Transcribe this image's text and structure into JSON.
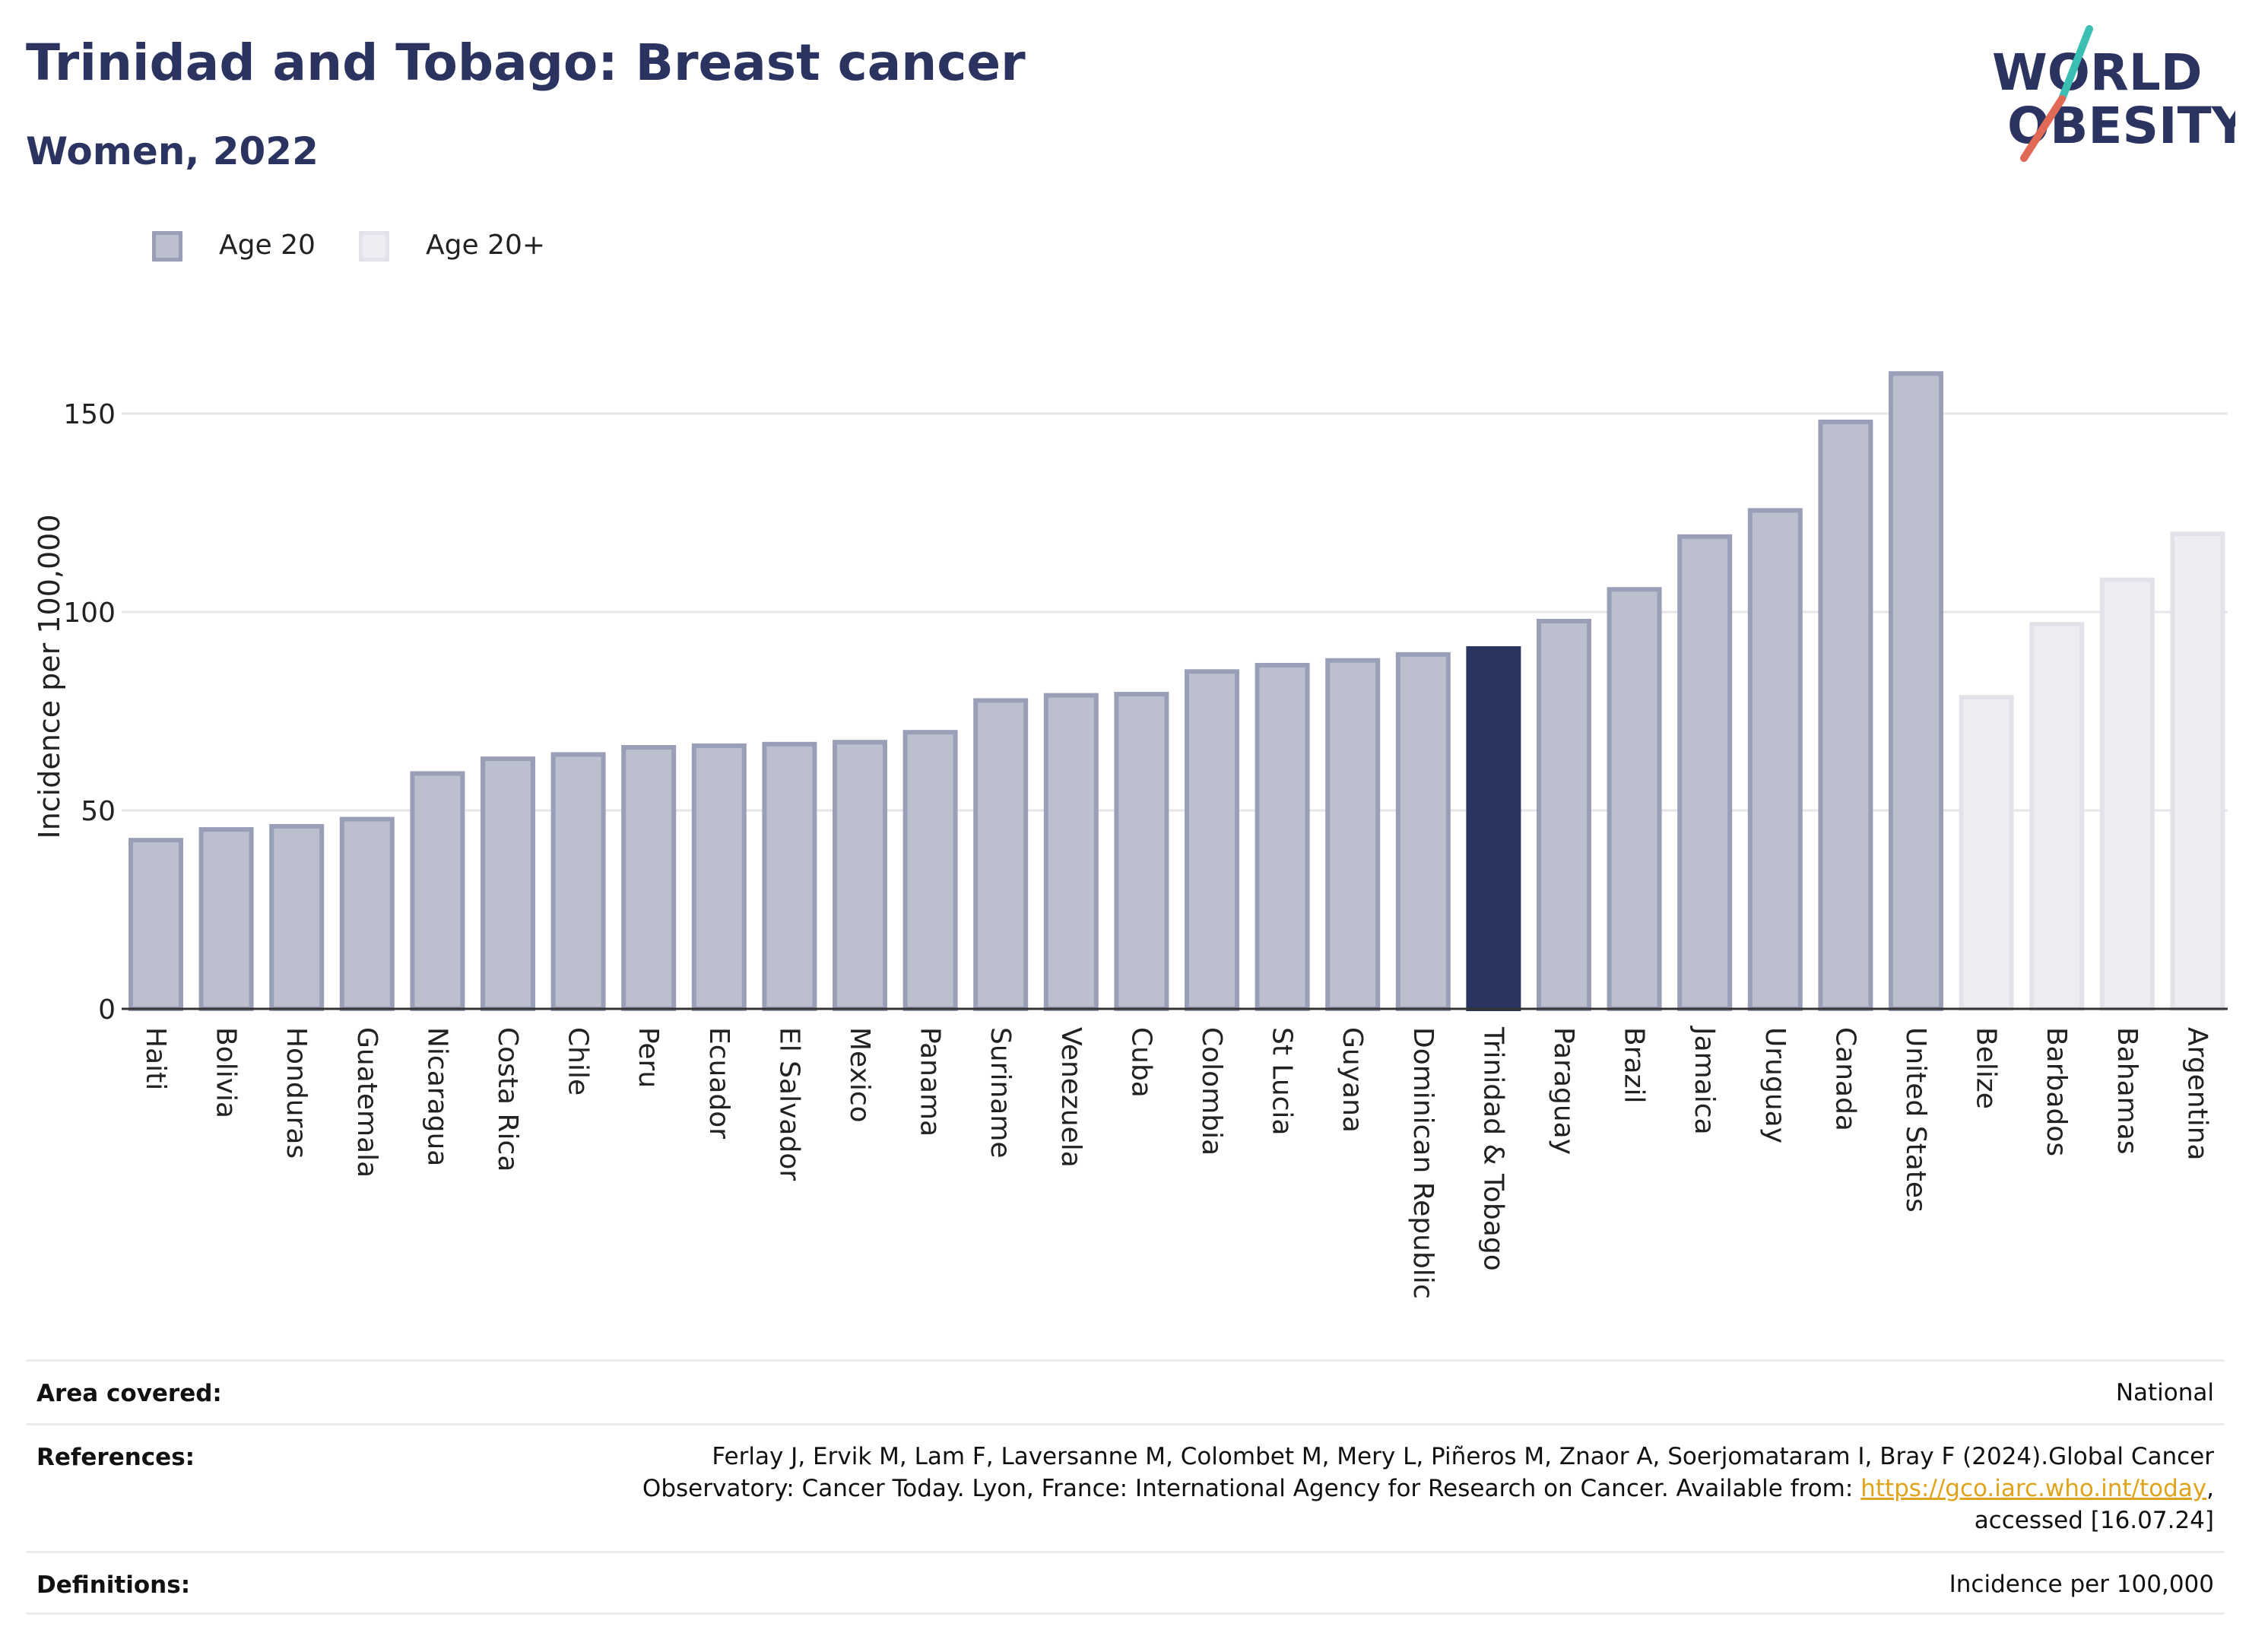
{
  "header": {
    "title": "Trinidad and Tobago: Breast cancer",
    "subtitle": "Women, 2022"
  },
  "logo": {
    "line1": "WORLD",
    "line2": "OBESITY"
  },
  "colors": {
    "title": "#2b3460",
    "age20_fill": "#bcbfcd",
    "age20_stroke": "#9a9fb8",
    "age20plus_fill": "#eeeef2",
    "age20plus_stroke": "#e2e3ea",
    "highlight": "#2b3460",
    "link": "#e0a41c"
  },
  "chart_data": {
    "type": "bar",
    "ylabel": "Incidence per 100,000",
    "ylim": [
      0,
      175
    ],
    "yticks": [
      0,
      50,
      100,
      150
    ],
    "grid": true,
    "legend": {
      "position": "top-left",
      "entries": [
        "Age 20",
        "Age 20+"
      ]
    },
    "highlight": "Trinidad & Tobago",
    "series": [
      {
        "name": "Age 20",
        "categories": [
          "Haiti",
          "Bolivia",
          "Honduras",
          "Guatemala",
          "Nicaragua",
          "Costa Rica",
          "Chile",
          "Peru",
          "Ecuador",
          "El Salvador",
          "Mexico",
          "Panama",
          "Suriname",
          "Venezuela",
          "Cuba",
          "Colombia",
          "St Lucia",
          "Guyana",
          "Dominican Republic",
          "Trinidad & Tobago",
          "Paraguay",
          "Brazil",
          "Jamaica",
          "Uruguay",
          "Canada",
          "United States"
        ],
        "values": [
          42.5,
          45.2,
          46.0,
          47.8,
          59.3,
          63.0,
          64.1,
          65.9,
          66.3,
          66.7,
          67.2,
          69.7,
          77.7,
          79.0,
          79.3,
          85.0,
          86.6,
          87.8,
          89.3,
          90.8,
          97.7,
          105.7,
          119.0,
          125.6,
          147.9,
          160.1
        ]
      },
      {
        "name": "Age 20+",
        "categories": [
          "Belize",
          "Barbados",
          "Bahamas",
          "Argentina"
        ],
        "values": [
          78.5,
          96.9,
          108.1,
          119.7
        ]
      }
    ]
  },
  "footer": {
    "area_label": "Area covered:",
    "area_value": "National",
    "references_label": "References:",
    "references_line1": "Ferlay J, Ervik M, Lam F, Laversanne M, Colombet M, Mery L, Piñeros M, Znaor A, Soerjomataram I, Bray F (2024).Global Cancer",
    "references_line2_pre": "Observatory: Cancer Today. Lyon, France: International Agency for Research on Cancer. Available from: ",
    "references_link": "https://gco.iarc.who.int/today",
    "references_line2_post": ",",
    "references_line3": "accessed [16.07.24]",
    "definitions_label": "Definitions:",
    "definitions_value": "Incidence per 100,000"
  }
}
